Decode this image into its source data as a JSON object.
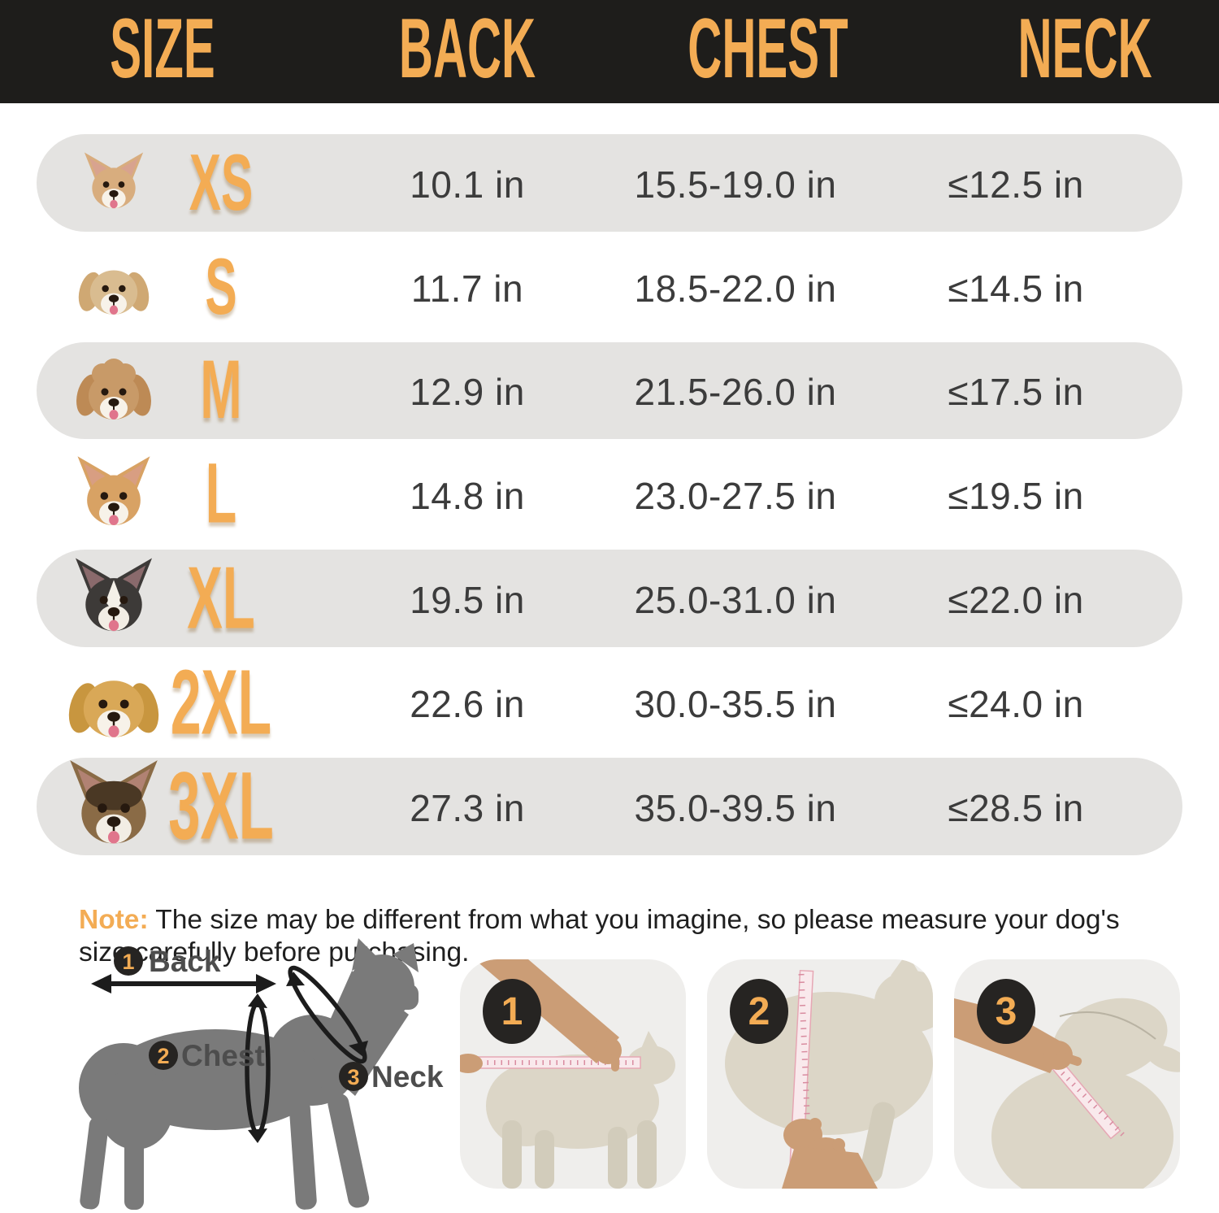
{
  "colors": {
    "accent": "#f3ac54",
    "header_bg": "#1e1d1b",
    "pill": "#e4e3e1",
    "value": "#3c3c3c",
    "note_text": "#1f1f1f",
    "diagram_text": "#4d4d4d",
    "silhouette": "#7a7a7a",
    "card_bg": "#efeeec",
    "mannequin": "#dcd6c7",
    "mannequin_dark": "#d2ccbb",
    "tape": "#f9e9ec",
    "tape_edge": "#e6a7b4",
    "hand": "#cb9d76"
  },
  "header": {
    "columns": [
      "SIZE",
      "BACK",
      "CHEST",
      "NECK"
    ]
  },
  "rows": [
    {
      "size": "XS",
      "back": "10.1 in",
      "chest": "15.5-19.0 in",
      "neck": "≤12.5 in",
      "dog": {
        "breed": "chihuahua",
        "fur": "#d8ad7e",
        "ears": "pointed"
      }
    },
    {
      "size": "S",
      "back": "11.7 in",
      "chest": "18.5-22.0 in",
      "neck": "≤14.5 in",
      "dog": {
        "breed": "havanese",
        "fur": "#d9bc90",
        "ears": "floppy",
        "ear_fill": "#cfa873"
      }
    },
    {
      "size": "M",
      "back": "12.9 in",
      "chest": "21.5-26.0 in",
      "neck": "≤17.5 in",
      "dog": {
        "breed": "poodle",
        "fur": "#c89a68",
        "ears": "floppy",
        "ear_fill": "#bd8a55"
      }
    },
    {
      "size": "L",
      "back": "14.8 in",
      "chest": "23.0-27.5 in",
      "neck": "≤19.5 in",
      "dog": {
        "breed": "corgi",
        "fur": "#d8a264",
        "ears": "pointed"
      }
    },
    {
      "size": "XL",
      "back": "19.5 in",
      "chest": "25.0-31.0 in",
      "neck": "≤22.0 in",
      "dog": {
        "breed": "border-collie",
        "fur": "#3d3a38",
        "ears": "pointed"
      }
    },
    {
      "size": "2XL",
      "back": "22.6 in",
      "chest": "30.0-35.5 in",
      "neck": "≤24.0 in",
      "dog": {
        "breed": "golden-retriever",
        "fur": "#d9a857",
        "ears": "floppy",
        "ear_fill": "#c8963f"
      }
    },
    {
      "size": "3XL",
      "back": "27.3 in",
      "chest": "35.0-39.5 in",
      "neck": "≤28.5 in",
      "dog": {
        "breed": "german-shepherd",
        "fur": "#8a6b46",
        "ears": "pointed"
      }
    }
  ],
  "chart_data": {
    "type": "table",
    "columns": [
      "SIZE",
      "BACK",
      "CHEST",
      "NECK"
    ],
    "rows": [
      [
        "XS",
        "10.1 in",
        "15.5-19.0 in",
        "≤12.5 in"
      ],
      [
        "S",
        "11.7 in",
        "18.5-22.0 in",
        "≤14.5 in"
      ],
      [
        "M",
        "12.9 in",
        "21.5-26.0 in",
        "≤17.5 in"
      ],
      [
        "L",
        "14.8 in",
        "23.0-27.5 in",
        "≤19.5 in"
      ],
      [
        "XL",
        "19.5 in",
        "25.0-31.0 in",
        "≤22.0 in"
      ],
      [
        "2XL",
        "22.6 in",
        "30.0-35.5 in",
        "≤24.0 in"
      ],
      [
        "3XL",
        "27.3 in",
        "35.0-39.5 in",
        "≤28.5 in"
      ]
    ]
  },
  "note": {
    "label": "Note:",
    "text": " The size may be different from what you imagine, so please measure your dog's size carefully before purchasing."
  },
  "diagram": {
    "measurements": [
      {
        "num": "1",
        "label": "Back"
      },
      {
        "num": "2",
        "label": "Chest"
      },
      {
        "num": "3",
        "label": "Neck"
      }
    ]
  },
  "steps": [
    {
      "num": "1"
    },
    {
      "num": "2"
    },
    {
      "num": "3"
    }
  ]
}
